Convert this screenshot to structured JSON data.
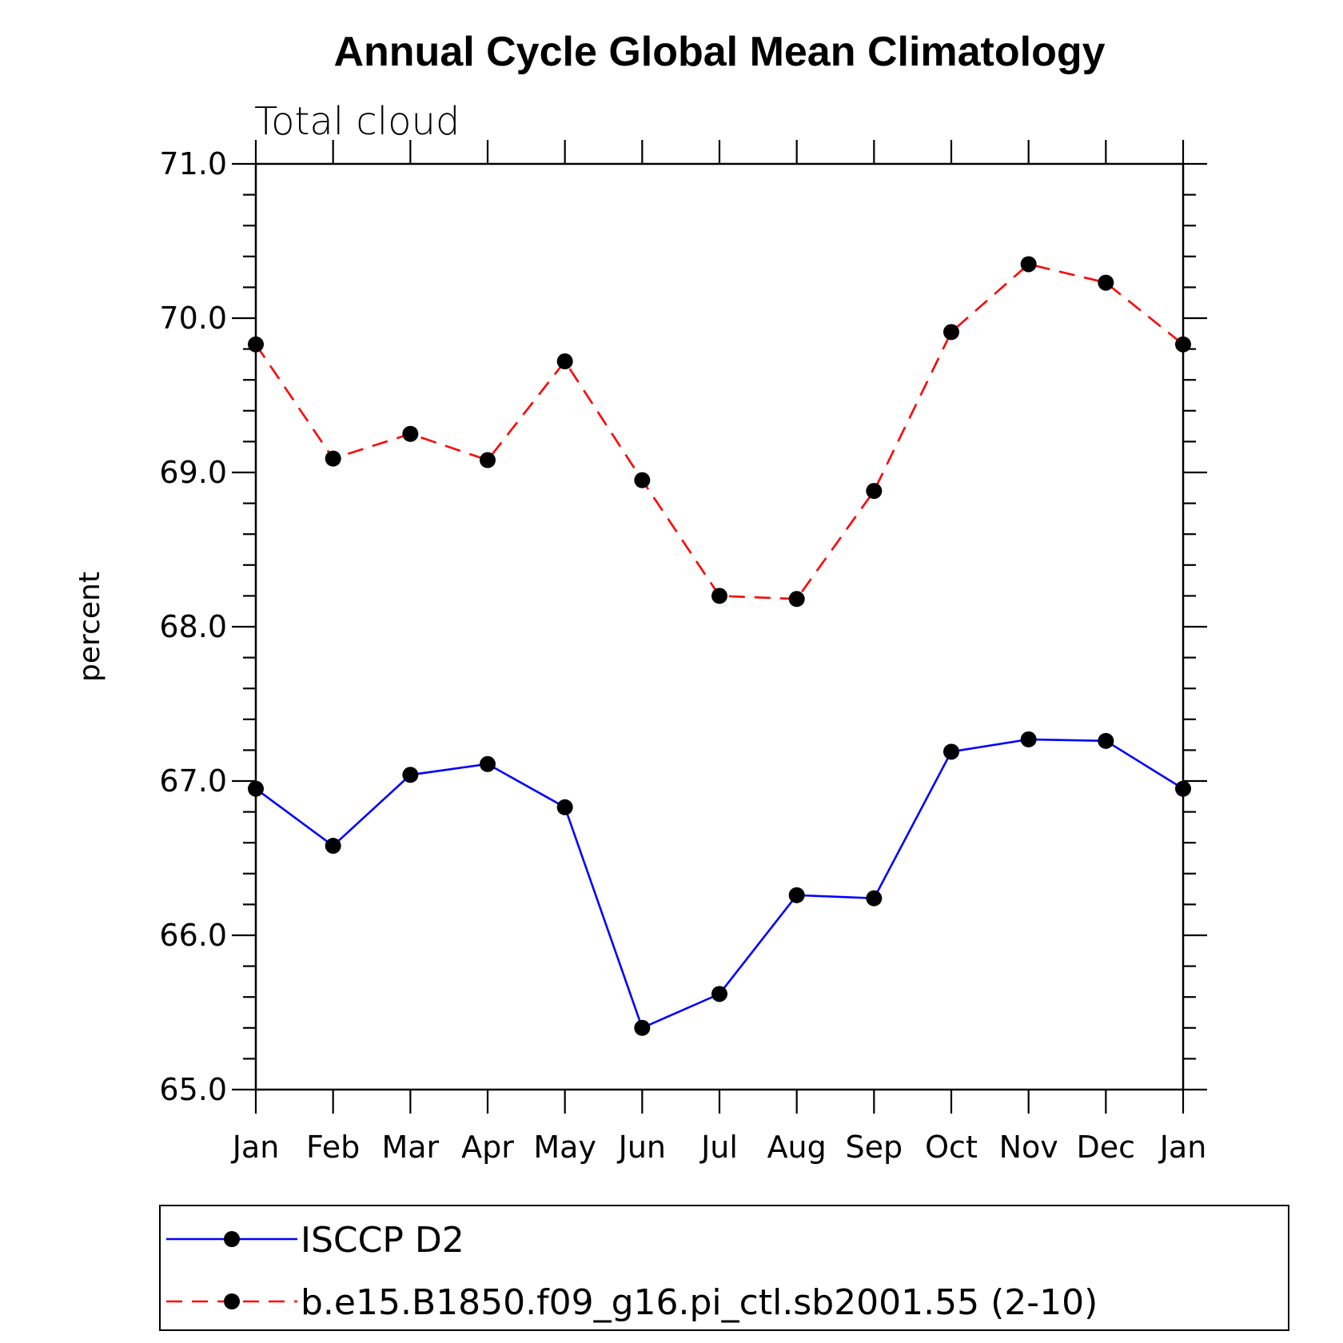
{
  "chart_data": {
    "type": "line",
    "title": "Annual Cycle Global Mean Climatology",
    "subtitle": "Total cloud",
    "xlabel": "",
    "ylabel": "percent",
    "categories": [
      "Jan",
      "Feb",
      "Mar",
      "Apr",
      "May",
      "Jun",
      "Jul",
      "Aug",
      "Sep",
      "Oct",
      "Nov",
      "Dec",
      "Jan"
    ],
    "ylim": [
      65.0,
      71.0
    ],
    "yticks": [
      "65.0",
      "66.0",
      "67.0",
      "68.0",
      "69.0",
      "70.0",
      "71.0"
    ],
    "grid": false,
    "legend_position": "bottom",
    "series": [
      {
        "name": "ISCCP D2",
        "color": "#0000ff",
        "dashed": false,
        "values": [
          66.95,
          66.58,
          67.04,
          67.11,
          66.83,
          65.4,
          65.62,
          66.26,
          66.24,
          67.19,
          67.27,
          67.26,
          66.95
        ]
      },
      {
        "name": "b.e15.B1850.f09_g16.pi_ctl.sb2001.55 (2-10)",
        "color": "#ff0000",
        "dashed": true,
        "values": [
          69.83,
          69.09,
          69.25,
          69.08,
          69.72,
          68.95,
          68.2,
          68.18,
          68.88,
          69.91,
          70.35,
          70.23,
          69.83
        ]
      }
    ]
  }
}
